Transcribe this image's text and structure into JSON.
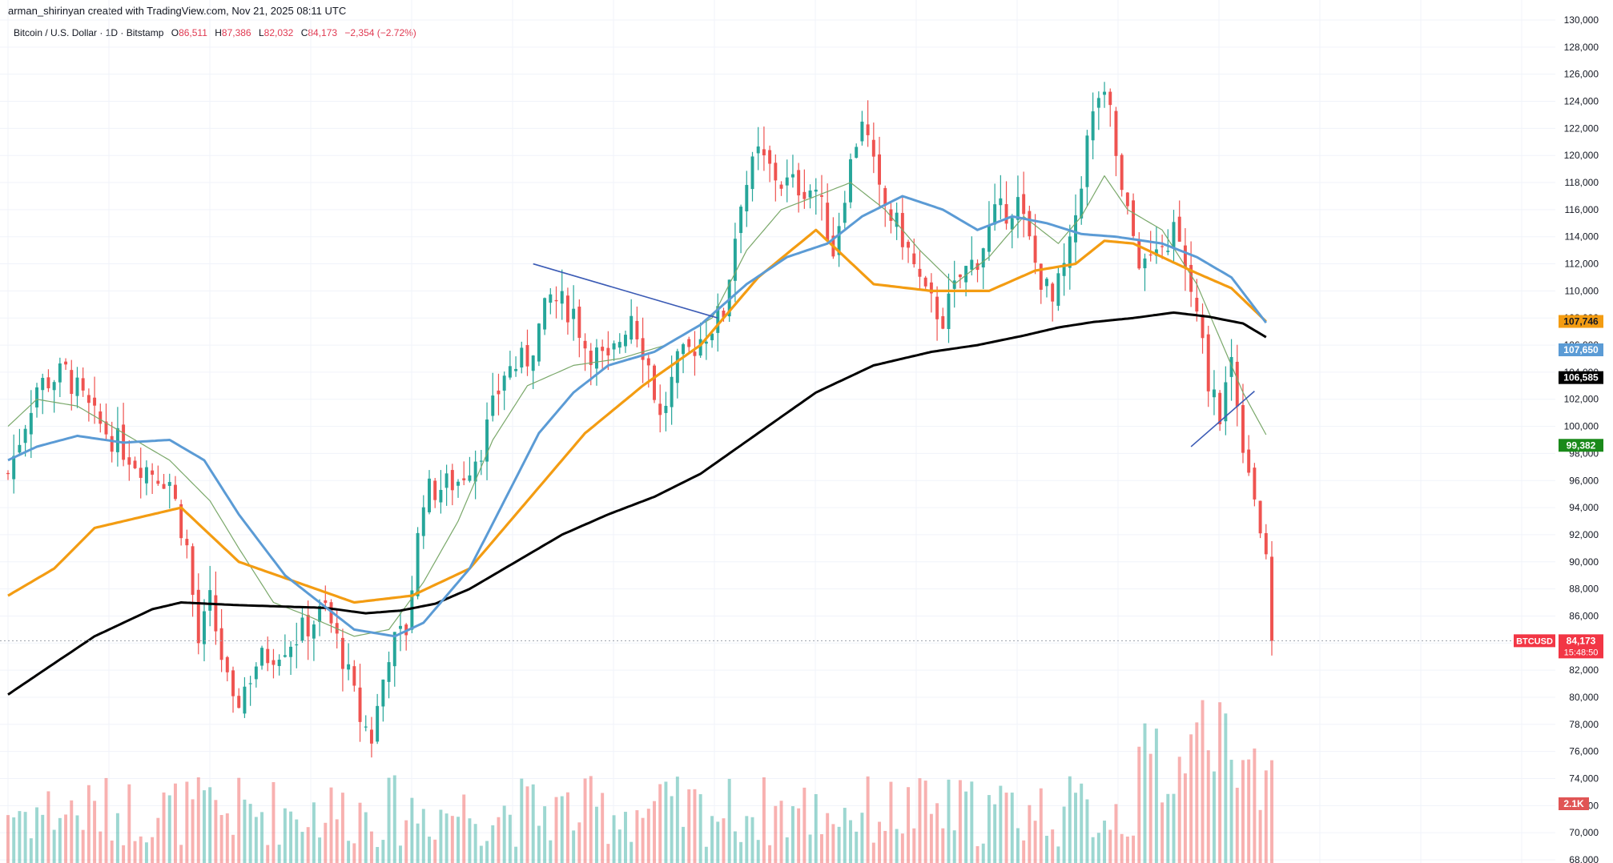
{
  "header": {
    "credit": "arman_shirinyan created with TradingView.com, Nov 21, 2025 08:11 UTC",
    "symbol": "Bitcoin / U.S. Dollar · 1D · Bitstamp",
    "open_label": "O",
    "open_value": "86,511",
    "high_label": "H",
    "high_value": "87,386",
    "low_label": "L",
    "low_value": "82,032",
    "close_label": "C",
    "close_value": "84,173",
    "change": "−2,354 (−2.72%)"
  },
  "colors": {
    "up": "#26a69a",
    "down": "#ef5350",
    "ma_orange": "#f39c12",
    "ma_blue": "#5b9bd5",
    "ma_black": "#000000",
    "ma_green": "#7aa86a",
    "trendline": "#3b5bb5",
    "label_green": "#1a8a1a",
    "label_red": "#f23645"
  },
  "chart_data": {
    "type": "line",
    "title": "Bitcoin / U.S. Dollar · 1D · Bitstamp",
    "ylim": [
      68000,
      130000
    ],
    "ticks": [
      "130,000",
      "128,000",
      "126,000",
      "124,000",
      "122,000",
      "120,000",
      "118,000",
      "116,000",
      "114,000",
      "112,000",
      "110,000",
      "108,000",
      "106,000",
      "104,000",
      "102,000",
      "100,000",
      "98,000",
      "96,000",
      "94,000",
      "92,000",
      "90,000",
      "88,000",
      "86,000",
      "84,000",
      "82,000",
      "80,000",
      "78,000",
      "76,000",
      "74,000",
      "72,000",
      "70,000",
      "68,000"
    ],
    "tick_values": [
      130000,
      128000,
      126000,
      124000,
      122000,
      120000,
      118000,
      116000,
      114000,
      112000,
      110000,
      108000,
      106000,
      104000,
      102000,
      100000,
      98000,
      96000,
      94000,
      92000,
      90000,
      88000,
      86000,
      84000,
      82000,
      80000,
      78000,
      76000,
      74000,
      72000,
      70000,
      68000
    ],
    "n_bars": 220,
    "close_anchors": [
      [
        0,
        96500
      ],
      [
        5,
        103000
      ],
      [
        10,
        104000
      ],
      [
        15,
        100500
      ],
      [
        22,
        97500
      ],
      [
        28,
        96000
      ],
      [
        31,
        91000
      ],
      [
        33,
        84000
      ],
      [
        35,
        87000
      ],
      [
        39,
        79000
      ],
      [
        43,
        82500
      ],
      [
        50,
        84500
      ],
      [
        55,
        86500
      ],
      [
        58,
        83000
      ],
      [
        61,
        78500
      ],
      [
        63,
        77000
      ],
      [
        66,
        83500
      ],
      [
        69,
        85000
      ],
      [
        72,
        95000
      ],
      [
        78,
        96000
      ],
      [
        82,
        98500
      ],
      [
        86,
        104000
      ],
      [
        90,
        105000
      ],
      [
        94,
        109500
      ],
      [
        98,
        108500
      ],
      [
        100,
        106000
      ],
      [
        104,
        104500
      ],
      [
        108,
        108500
      ],
      [
        111,
        104500
      ],
      [
        113,
        100500
      ],
      [
        116,
        104500
      ],
      [
        120,
        106500
      ],
      [
        124,
        108500
      ],
      [
        127,
        117000
      ],
      [
        130,
        120000
      ],
      [
        134,
        118000
      ],
      [
        140,
        117500
      ],
      [
        143,
        113000
      ],
      [
        145,
        117500
      ],
      [
        148,
        123000
      ],
      [
        151,
        117000
      ],
      [
        155,
        114000
      ],
      [
        159,
        109500
      ],
      [
        162,
        108000
      ],
      [
        165,
        111000
      ],
      [
        168,
        112500
      ],
      [
        171,
        115500
      ],
      [
        175,
        116500
      ],
      [
        178,
        112000
      ],
      [
        181,
        109000
      ],
      [
        184,
        113000
      ],
      [
        187,
        121000
      ],
      [
        189,
        124500
      ],
      [
        191,
        123000
      ],
      [
        193,
        117000
      ],
      [
        196,
        112500
      ],
      [
        199,
        112000
      ],
      [
        202,
        114500
      ],
      [
        205,
        110000
      ],
      [
        208,
        103500
      ],
      [
        210,
        101000
      ],
      [
        212,
        105000
      ],
      [
        214,
        99000
      ],
      [
        216,
        95000
      ],
      [
        218,
        89500
      ],
      [
        219,
        84173
      ]
    ],
    "series": [
      {
        "name": "BTCUSD",
        "last_label": "84,173",
        "countdown": "15:48:50"
      },
      {
        "values_ref": "ma_orange",
        "last_label": "107,746"
      },
      {
        "values_ref": "ma_blue",
        "last_label": "107,650"
      },
      {
        "values_ref": "ma_black",
        "last_label": "106,585"
      },
      {
        "values_ref": "ma_green",
        "last_label": "99,382"
      }
    ],
    "ma_orange": [
      [
        0,
        87500
      ],
      [
        8,
        89500
      ],
      [
        15,
        92500
      ],
      [
        25,
        93500
      ],
      [
        30,
        94000
      ],
      [
        35,
        92000
      ],
      [
        40,
        90000
      ],
      [
        50,
        88500
      ],
      [
        60,
        87000
      ],
      [
        70,
        87500
      ],
      [
        80,
        89500
      ],
      [
        90,
        94500
      ],
      [
        100,
        99500
      ],
      [
        110,
        103000
      ],
      [
        120,
        106000
      ],
      [
        130,
        111000
      ],
      [
        140,
        114500
      ],
      [
        150,
        110500
      ],
      [
        160,
        110000
      ],
      [
        170,
        110000
      ],
      [
        178,
        111500
      ],
      [
        185,
        112000
      ],
      [
        190,
        113700
      ],
      [
        195,
        113500
      ],
      [
        205,
        111500
      ],
      [
        212,
        110200
      ],
      [
        218,
        107746
      ]
    ],
    "ma_blue": [
      [
        0,
        97500
      ],
      [
        5,
        98500
      ],
      [
        12,
        99300
      ],
      [
        20,
        98800
      ],
      [
        28,
        99000
      ],
      [
        34,
        97500
      ],
      [
        40,
        93500
      ],
      [
        48,
        89000
      ],
      [
        54,
        87000
      ],
      [
        60,
        85000
      ],
      [
        67,
        84500
      ],
      [
        72,
        85500
      ],
      [
        80,
        89500
      ],
      [
        86,
        94500
      ],
      [
        92,
        99500
      ],
      [
        98,
        102500
      ],
      [
        104,
        104500
      ],
      [
        112,
        105500
      ],
      [
        120,
        107500
      ],
      [
        128,
        110500
      ],
      [
        135,
        112500
      ],
      [
        142,
        113500
      ],
      [
        148,
        115500
      ],
      [
        155,
        117000
      ],
      [
        162,
        116000
      ],
      [
        168,
        114500
      ],
      [
        174,
        115500
      ],
      [
        180,
        115000
      ],
      [
        186,
        114200
      ],
      [
        192,
        114000
      ],
      [
        200,
        113500
      ],
      [
        206,
        112500
      ],
      [
        212,
        111000
      ],
      [
        218,
        107650
      ]
    ],
    "ma_black": [
      [
        0,
        80200
      ],
      [
        8,
        82500
      ],
      [
        15,
        84500
      ],
      [
        25,
        86500
      ],
      [
        30,
        87000
      ],
      [
        40,
        86800
      ],
      [
        55,
        86600
      ],
      [
        62,
        86200
      ],
      [
        68,
        86400
      ],
      [
        74,
        86900
      ],
      [
        80,
        88000
      ],
      [
        88,
        90000
      ],
      [
        96,
        92000
      ],
      [
        104,
        93500
      ],
      [
        112,
        94800
      ],
      [
        120,
        96500
      ],
      [
        130,
        99500
      ],
      [
        140,
        102500
      ],
      [
        150,
        104500
      ],
      [
        160,
        105500
      ],
      [
        168,
        106000
      ],
      [
        176,
        106700
      ],
      [
        182,
        107300
      ],
      [
        188,
        107700
      ],
      [
        195,
        108000
      ],
      [
        202,
        108400
      ],
      [
        208,
        108100
      ],
      [
        214,
        107600
      ],
      [
        218,
        106585
      ]
    ],
    "ma_green": [
      [
        0,
        100000
      ],
      [
        5,
        102000
      ],
      [
        12,
        101500
      ],
      [
        20,
        99500
      ],
      [
        28,
        97500
      ],
      [
        35,
        94500
      ],
      [
        40,
        91000
      ],
      [
        46,
        87000
      ],
      [
        52,
        86000
      ],
      [
        60,
        84500
      ],
      [
        66,
        85000
      ],
      [
        72,
        88500
      ],
      [
        78,
        93000
      ],
      [
        84,
        99000
      ],
      [
        90,
        103000
      ],
      [
        98,
        104500
      ],
      [
        106,
        105000
      ],
      [
        114,
        106000
      ],
      [
        122,
        108000
      ],
      [
        128,
        113000
      ],
      [
        134,
        116000
      ],
      [
        140,
        117000
      ],
      [
        146,
        118000
      ],
      [
        152,
        116000
      ],
      [
        158,
        113000
      ],
      [
        164,
        110500
      ],
      [
        170,
        112500
      ],
      [
        176,
        115500
      ],
      [
        182,
        113500
      ],
      [
        186,
        115500
      ],
      [
        190,
        118500
      ],
      [
        194,
        116000
      ],
      [
        200,
        114500
      ],
      [
        206,
        110500
      ],
      [
        210,
        106500
      ],
      [
        214,
        102500
      ],
      [
        218,
        99382
      ]
    ],
    "trendlines": [
      {
        "from": [
          91,
          112000
        ],
        "to": [
          123,
          108000
        ]
      },
      {
        "from": [
          205,
          98500
        ],
        "to": [
          216,
          102600
        ]
      }
    ],
    "volume": {
      "label": "2.1K"
    },
    "price_line": 84173
  }
}
